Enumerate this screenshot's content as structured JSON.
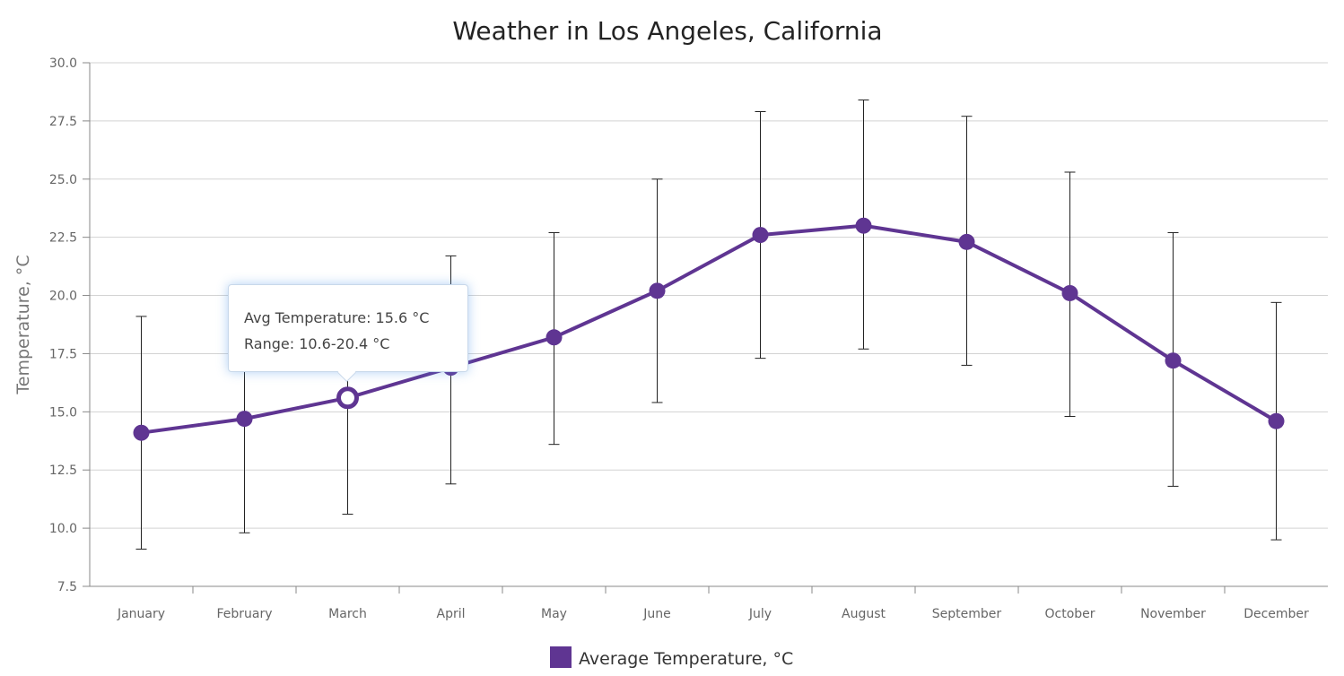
{
  "chart_data": {
    "type": "line",
    "title": "Weather in Los Angeles, California",
    "ylabel": "Temperature, °C",
    "xlabel": "",
    "ylim": [
      7.5,
      30
    ],
    "yticks": [
      "7.5",
      "10.0",
      "12.5",
      "15.0",
      "17.5",
      "20.0",
      "22.5",
      "25.0",
      "27.5",
      "30.0"
    ],
    "grid": true,
    "legend_position": "bottom",
    "categories": [
      "January",
      "February",
      "March",
      "April",
      "May",
      "June",
      "July",
      "August",
      "September",
      "October",
      "November",
      "December"
    ],
    "series": [
      {
        "name": "Average Temperature, °C",
        "color": "#5f3592",
        "values": [
          14.1,
          14.7,
          15.6,
          16.9,
          18.2,
          20.2,
          22.6,
          23.0,
          22.3,
          20.1,
          17.2,
          14.6
        ],
        "error_low": [
          9.1,
          9.8,
          10.6,
          11.9,
          13.6,
          15.4,
          17.3,
          17.7,
          17.0,
          14.8,
          11.8,
          9.5
        ],
        "error_high": [
          19.1,
          19.6,
          20.4,
          21.7,
          22.7,
          25.0,
          27.9,
          28.4,
          27.7,
          25.3,
          22.7,
          19.7
        ]
      }
    ],
    "tooltip": {
      "line1": "Avg Temperature: 15.6 °C",
      "line2": "Range: 10.6-20.4 °C",
      "hovered_index": 2
    }
  }
}
